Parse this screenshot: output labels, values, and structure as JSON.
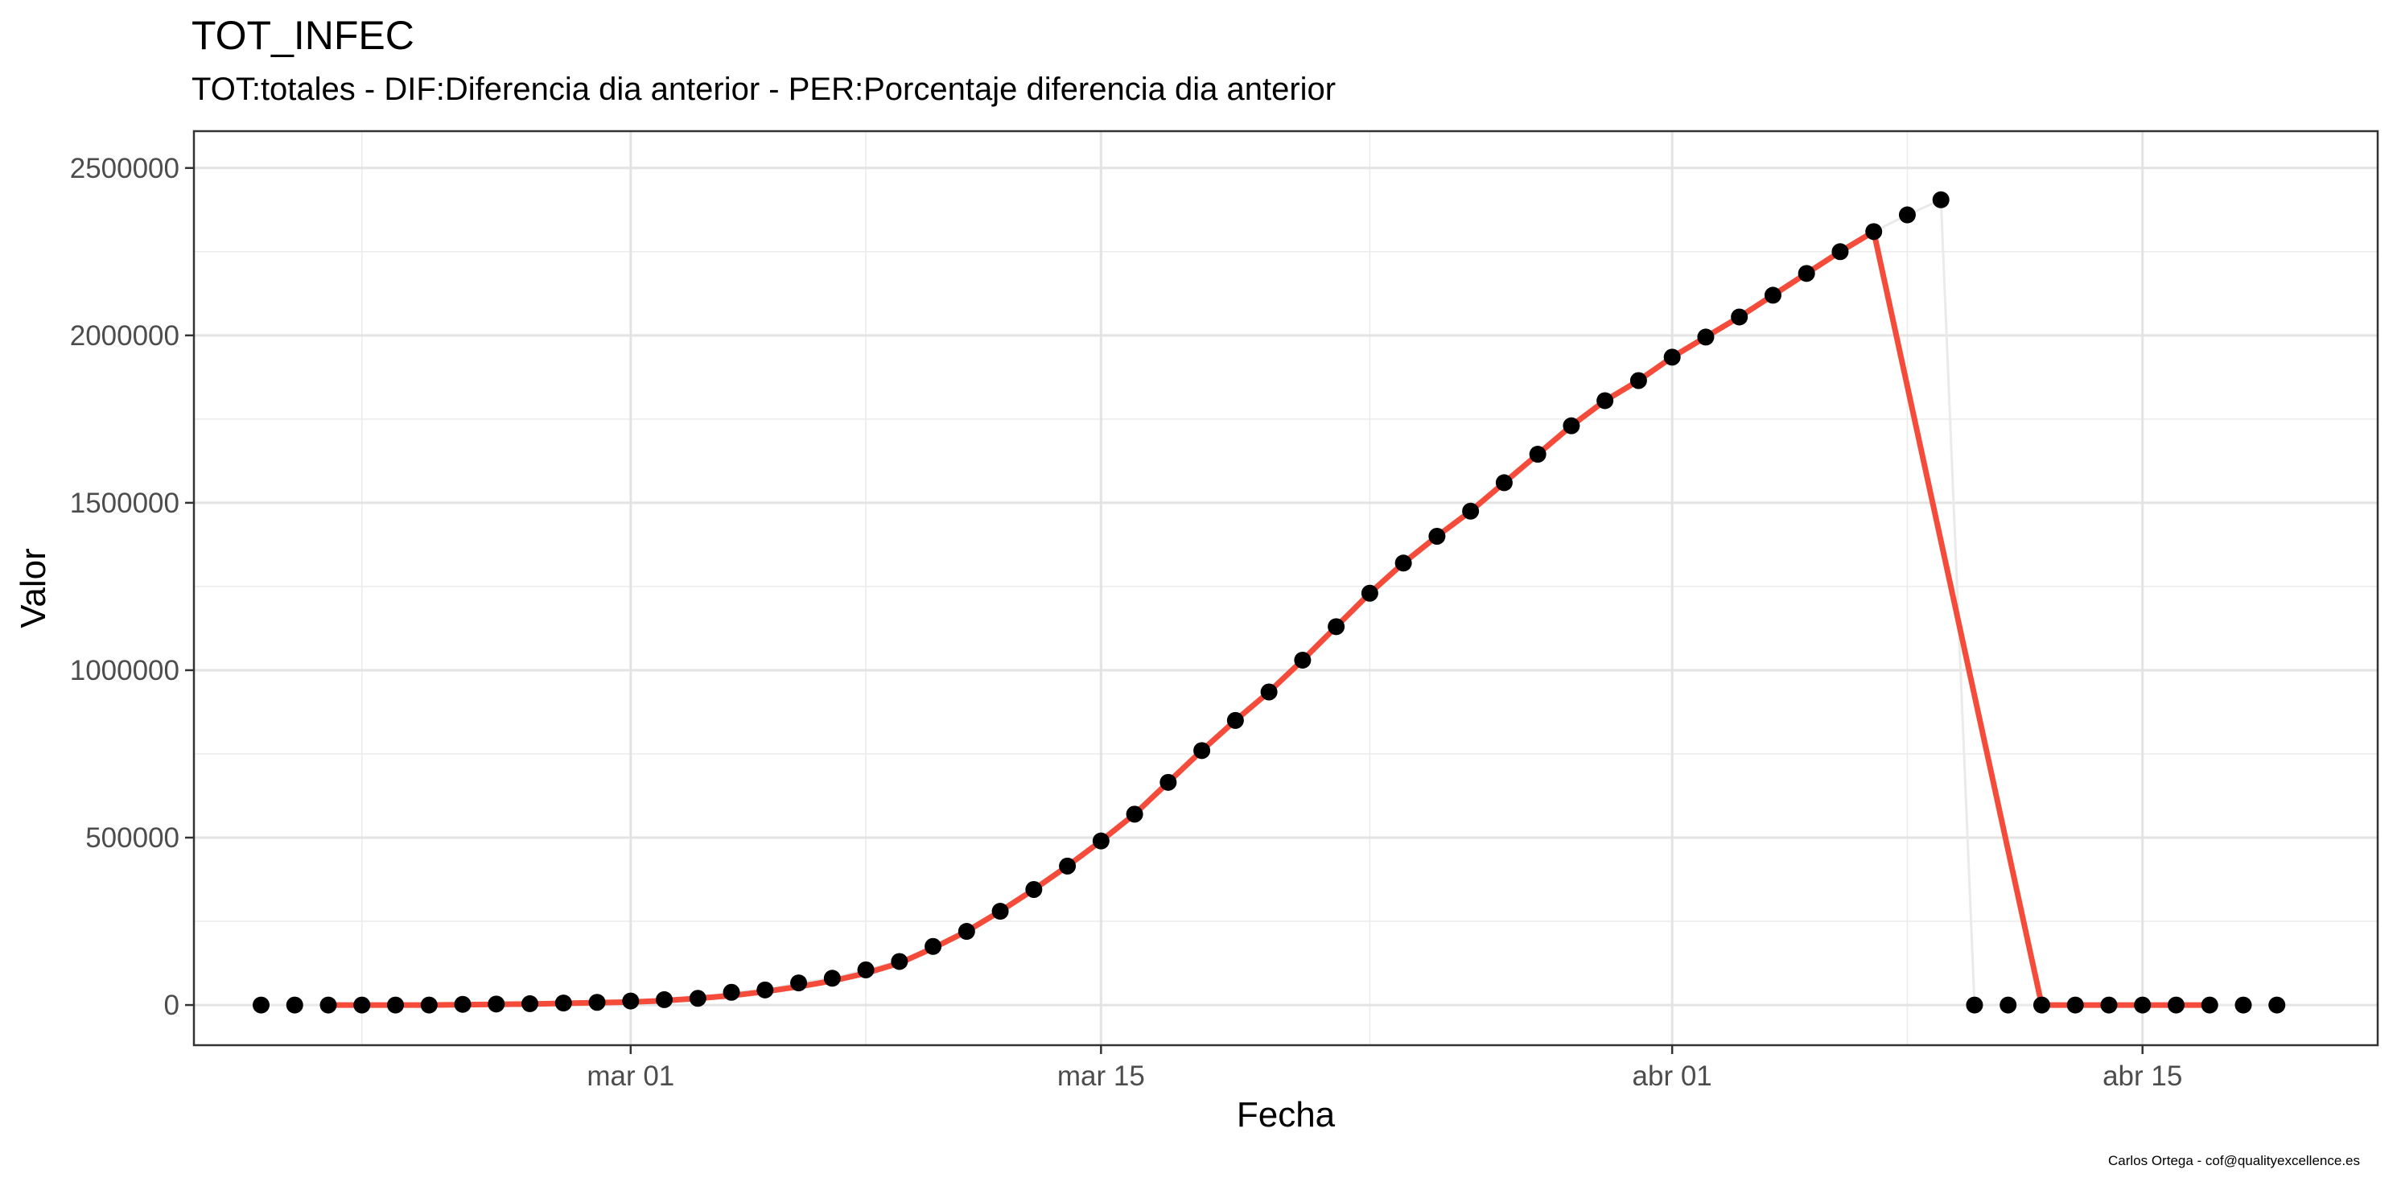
{
  "chart_data": {
    "type": "line",
    "title": "TOT_INFEC",
    "subtitle": "TOT:totales - DIF:Diferencia dia anterior - PER:Porcentaje diferencia dia anterior",
    "caption": "Carlos Ortega - cof@qualityexcellence.es",
    "xlabel": "Fecha",
    "ylabel": "Valor",
    "xlim": [
      "2020-02-17",
      "2020-04-22"
    ],
    "ylim": [
      -120000,
      2610000
    ],
    "x_ticks": [
      {
        "date": "2020-03-01",
        "label": "mar 01"
      },
      {
        "date": "2020-03-15",
        "label": "mar 15"
      },
      {
        "date": "2020-04-01",
        "label": "abr 01"
      },
      {
        "date": "2020-04-15",
        "label": "abr 15"
      }
    ],
    "x_minor_ticks": [
      "2020-02-22",
      "2020-03-08",
      "2020-03-23",
      "2020-04-08",
      "2020-04-22"
    ],
    "y_ticks": [
      0,
      500000,
      1000000,
      1500000,
      2000000,
      2500000
    ],
    "y_tick_labels": [
      "0",
      "500000",
      "1000000",
      "1500000",
      "2000000",
      "2500000"
    ],
    "grid": true,
    "legend": "none",
    "series": [
      {
        "kind": "points",
        "color": "#000000",
        "x": [
          "2020-02-19",
          "2020-02-20",
          "2020-02-21",
          "2020-02-22",
          "2020-02-23",
          "2020-02-24",
          "2020-02-25",
          "2020-02-26",
          "2020-02-27",
          "2020-02-28",
          "2020-02-29",
          "2020-03-01",
          "2020-03-02",
          "2020-03-03",
          "2020-03-04",
          "2020-03-05",
          "2020-03-06",
          "2020-03-07",
          "2020-03-08",
          "2020-03-09",
          "2020-03-10",
          "2020-03-11",
          "2020-03-12",
          "2020-03-13",
          "2020-03-14",
          "2020-03-15",
          "2020-03-16",
          "2020-03-17",
          "2020-03-18",
          "2020-03-19",
          "2020-03-20",
          "2020-03-21",
          "2020-03-22",
          "2020-03-23",
          "2020-03-24",
          "2020-03-25",
          "2020-03-26",
          "2020-03-27",
          "2020-03-28",
          "2020-03-29",
          "2020-03-30",
          "2020-03-31",
          "2020-04-01",
          "2020-04-02",
          "2020-04-03",
          "2020-04-04",
          "2020-04-05",
          "2020-04-06",
          "2020-04-07",
          "2020-04-08",
          "2020-04-09",
          "2020-04-10",
          "2020-04-11",
          "2020-04-12",
          "2020-04-13",
          "2020-04-14",
          "2020-04-15",
          "2020-04-16",
          "2020-04-17",
          "2020-04-18",
          "2020-04-19"
        ],
        "y": [
          0,
          0,
          0,
          0,
          0,
          0,
          2000,
          3000,
          4000,
          6000,
          8000,
          12000,
          16000,
          20000,
          38000,
          45000,
          66000,
          80000,
          105000,
          130000,
          175000,
          220000,
          280000,
          345000,
          415000,
          490000,
          570000,
          665000,
          760000,
          850000,
          935000,
          1030000,
          1130000,
          1230000,
          1320000,
          1400000,
          1475000,
          1560000,
          1645000,
          1730000,
          1805000,
          1865000,
          1935000,
          1995000,
          2055000,
          2120000,
          2185000,
          2250000,
          2310000,
          2360000,
          2405000,
          0,
          0,
          0,
          0,
          0,
          0,
          0,
          0,
          0,
          0
        ]
      },
      {
        "kind": "line",
        "color": "#f44b3a",
        "x": [
          "2020-02-21",
          "2020-02-22",
          "2020-02-23",
          "2020-02-24",
          "2020-02-25",
          "2020-02-26",
          "2020-02-27",
          "2020-02-28",
          "2020-02-29",
          "2020-03-01",
          "2020-03-02",
          "2020-03-03",
          "2020-03-04",
          "2020-03-05",
          "2020-03-06",
          "2020-03-07",
          "2020-03-08",
          "2020-03-09",
          "2020-03-10",
          "2020-03-11",
          "2020-03-12",
          "2020-03-13",
          "2020-03-14",
          "2020-03-15",
          "2020-03-16",
          "2020-03-17",
          "2020-03-18",
          "2020-03-19",
          "2020-03-20",
          "2020-03-21",
          "2020-03-22",
          "2020-03-23",
          "2020-03-24",
          "2020-03-25",
          "2020-03-26",
          "2020-03-27",
          "2020-03-28",
          "2020-03-29",
          "2020-03-30",
          "2020-03-31",
          "2020-04-01",
          "2020-04-02",
          "2020-04-03",
          "2020-04-04",
          "2020-04-05",
          "2020-04-06",
          "2020-04-07",
          "2020-04-12",
          "2020-04-13",
          "2020-04-14",
          "2020-04-15",
          "2020-04-16",
          "2020-04-17"
        ],
        "y": [
          0,
          0,
          0,
          0,
          1000,
          2000,
          3000,
          5000,
          7000,
          9000,
          13000,
          20000,
          28000,
          40000,
          55000,
          72000,
          95000,
          125000,
          170000,
          220000,
          280000,
          345000,
          415000,
          490000,
          570000,
          665000,
          760000,
          850000,
          935000,
          1030000,
          1130000,
          1230000,
          1320000,
          1400000,
          1475000,
          1560000,
          1645000,
          1730000,
          1805000,
          1865000,
          1935000,
          1995000,
          2055000,
          2120000,
          2185000,
          2250000,
          2310000,
          0,
          0,
          0,
          0,
          0,
          0
        ]
      }
    ]
  }
}
